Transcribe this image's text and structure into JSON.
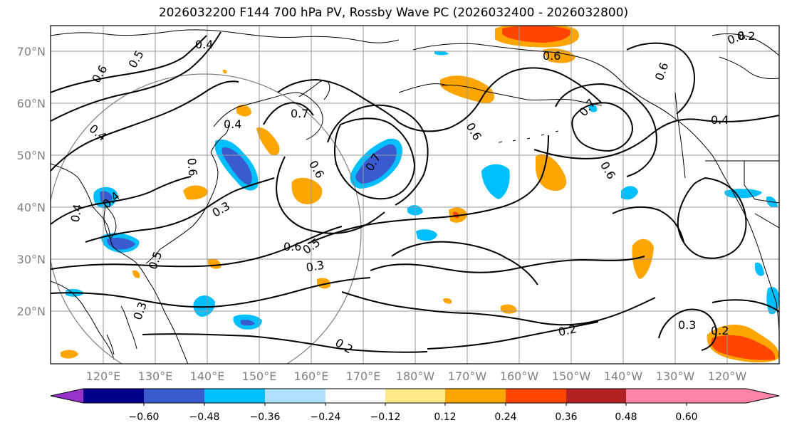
{
  "title": "2026032200 F144 700 hPa PV, Rossby Wave PC (2026032400 - 2026032800)",
  "lat_labels": [
    "70°N",
    "60°N",
    "50°N",
    "40°N",
    "30°N",
    "20°N"
  ],
  "lon_labels": [
    "120°E",
    "130°E",
    "140°E",
    "150°E",
    "160°E",
    "170°E",
    "180°W",
    "170°W",
    "160°W",
    "150°W",
    "140°W",
    "130°W",
    "120°W"
  ],
  "colorbar": {
    "ticks": [
      "−0.60",
      "−0.48",
      "−0.36",
      "−0.24",
      "−0.12",
      "0.12",
      "0.24",
      "0.36",
      "0.48",
      "0.60"
    ],
    "colors": [
      "#9932cc",
      "#00008b",
      "#3a5bd0",
      "#00bfff",
      "#b0e2ff",
      "#ffffff",
      "#ffe88a",
      "#ffa500",
      "#ff4500",
      "#b22222",
      "#ff85a8"
    ]
  },
  "contour_labels": [
    "0.4",
    "0.5",
    "0.6",
    "0.4",
    "0.4",
    "0.7",
    "0.6",
    "0.5",
    "0.6",
    "0.7",
    "0.8",
    "0.6",
    "0.6",
    "0.4",
    "0.7",
    "0.6",
    "0.5",
    "0.6",
    "0.4",
    "0.3",
    "0.3",
    "0.3",
    "0.2",
    "0.2",
    "0.3",
    "0.2",
    "0.6",
    "0.4",
    "0.2"
  ],
  "map_colors": {
    "gridline": "#999999",
    "circle": "#808080",
    "contour": "#000000",
    "coast": "#000000"
  }
}
